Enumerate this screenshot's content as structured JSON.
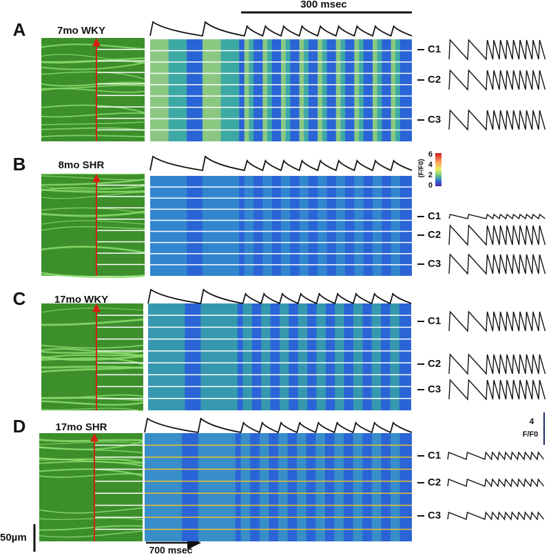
{
  "scale_bars": {
    "time_top": "300 msec",
    "time_bottom": "700 msec",
    "length": "50µm",
    "amplitude_value": "4",
    "amplitude_unit": "F/F0"
  },
  "colorbar": {
    "title": "(F/F0)",
    "ticks": [
      "6",
      "4",
      "2",
      "0"
    ]
  },
  "panels": [
    {
      "label": "A",
      "title": "7mo WKY",
      "cells": [
        "C1",
        "C2",
        "C3"
      ]
    },
    {
      "label": "B",
      "title": "8mo SHR",
      "cells": [
        "C1",
        "C2",
        "C3"
      ]
    },
    {
      "label": "C",
      "title": "17mo WKY",
      "cells": [
        "C1",
        "C2",
        "C3"
      ]
    },
    {
      "label": "D",
      "title": "17mo SHR",
      "cells": [
        "C1",
        "C2",
        "C3"
      ]
    }
  ]
}
